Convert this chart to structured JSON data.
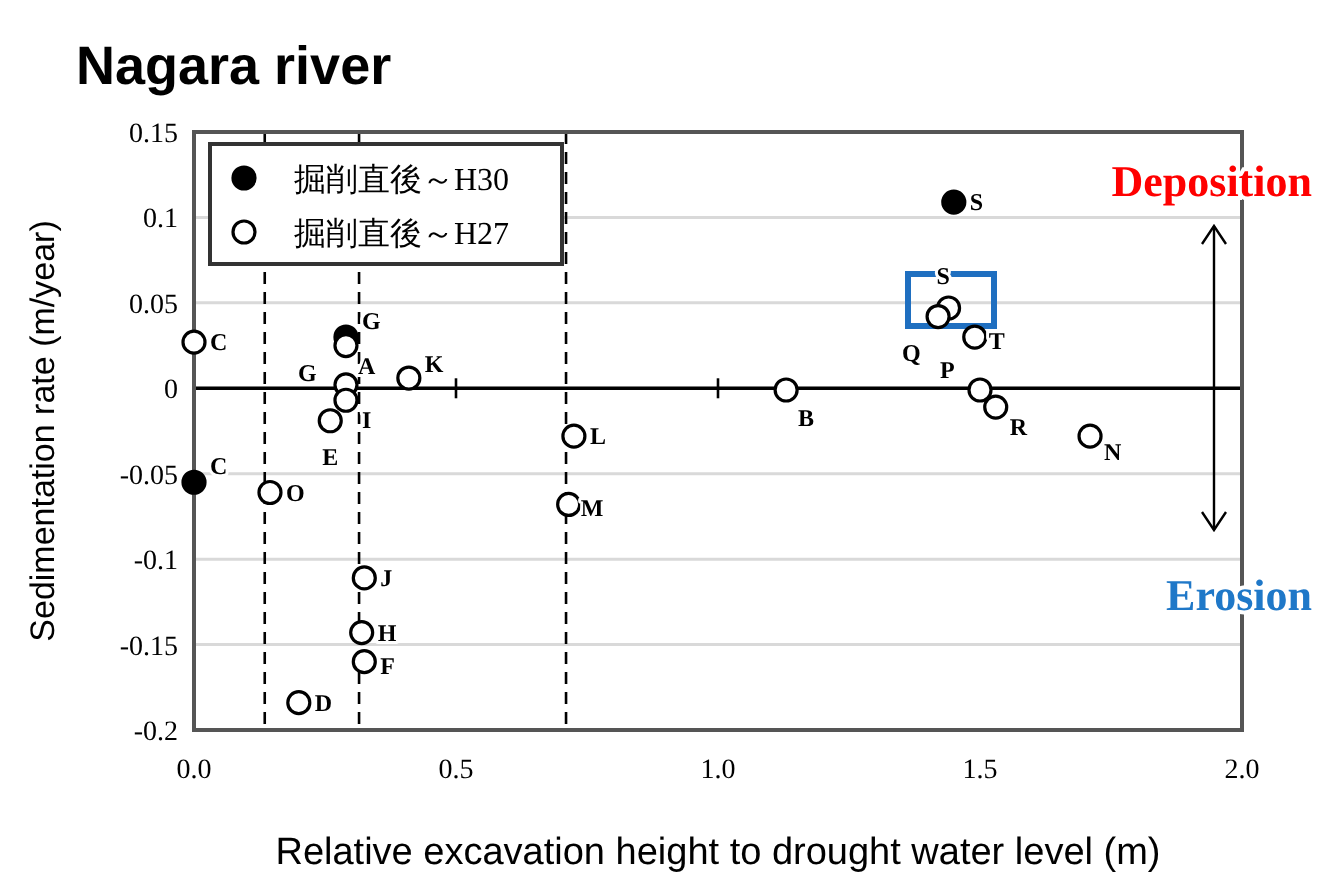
{
  "chart_data": {
    "type": "scatter",
    "title": "Nagara river",
    "xlabel": "Relative excavation height to drought water level (m)",
    "ylabel": "Sedimentation rate (m/year)",
    "xlim": [
      0,
      2
    ],
    "xticks": [
      {
        "value": 0,
        "label": "0.0"
      },
      0.5,
      {
        "value": 1,
        "label": "1.0"
      },
      1.5,
      {
        "value": 2,
        "label": "2.0"
      }
    ],
    "ylim": [
      -0.2,
      0.15
    ],
    "yticks": [
      -0.2,
      -0.15,
      -0.1,
      -0.05,
      0,
      0.05,
      0.1,
      0.15
    ],
    "grid": "y",
    "legend": "top left",
    "marker": "circle",
    "series": [
      {
        "name": "掘削直後～H30",
        "color": "#000000",
        "x": [
          0,
          0.29,
          1.45
        ],
        "values": [
          -0.055,
          0.03,
          0.109
        ],
        "value_labels": [
          "C",
          "G",
          "S"
        ]
      },
      {
        "name": "掘削直後～H27",
        "color": "#ffffff",
        "x": [
          0,
          0.29,
          0.29,
          0.29,
          0.26,
          0.41,
          0.145,
          0.725,
          0.715,
          0.325,
          0.32,
          0.325,
          0.2,
          1.44,
          1.42,
          1.49,
          1.13,
          1.5,
          1.53,
          1.71
        ],
        "values": [
          0.027,
          0.025,
          0.002,
          -0.007,
          -0.019,
          0.006,
          -0.061,
          -0.028,
          -0.068,
          -0.111,
          -0.143,
          -0.16,
          -0.184,
          0.047,
          0.042,
          0.03,
          -0.001,
          -0.001,
          -0.011,
          -0.028
        ],
        "value_labels": [
          "C",
          "A",
          "G",
          "I",
          "E",
          "K",
          "O",
          "L",
          "M",
          "J",
          "H",
          "F",
          "D",
          "S",
          "Q",
          "T",
          "B",
          "P",
          "R",
          "N"
        ]
      }
    ],
    "ref_lines": [
      {
        "axis": "y",
        "value": 0,
        "label": null,
        "line_style": "solid"
      },
      {
        "axis": "x",
        "value": 0.135,
        "label": null,
        "line_style": "dashed"
      },
      {
        "axis": "x",
        "value": 0.315,
        "label": null,
        "line_style": "dashed"
      },
      {
        "axis": "x",
        "value": 0.71,
        "label": null,
        "line_style": "dashed"
      }
    ],
    "annotations": [
      "Deposition",
      "Erosion"
    ]
  }
}
